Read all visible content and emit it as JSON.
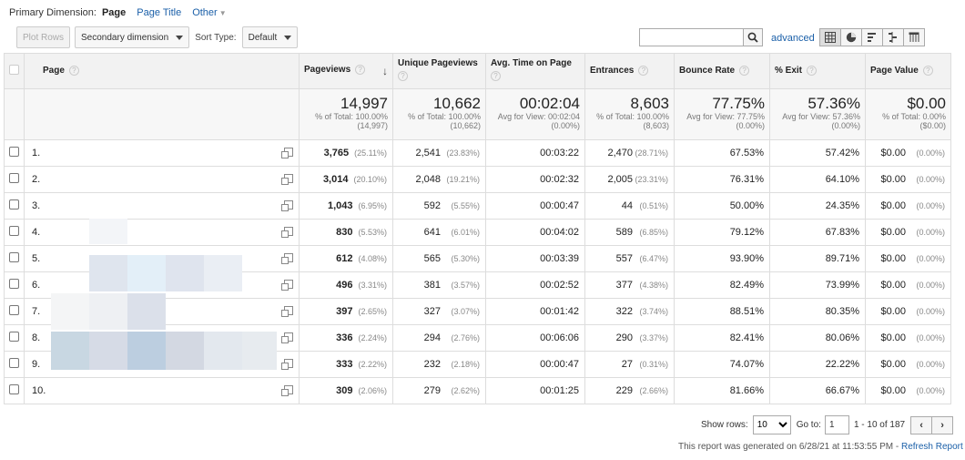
{
  "primary_dimension": {
    "label": "Primary Dimension:",
    "active": "Page",
    "options": [
      "Page Title",
      "Other"
    ]
  },
  "toolbar": {
    "plot_rows": "Plot Rows",
    "secondary_dimension": "Secondary dimension",
    "sort_type_label": "Sort Type:",
    "sort_type_value": "Default",
    "advanced": "advanced"
  },
  "columns": {
    "page": "Page",
    "pageviews": "Pageviews",
    "unique_pageviews": "Unique Pageviews",
    "avg_time": "Avg. Time on Page",
    "entrances": "Entrances",
    "bounce_rate": "Bounce Rate",
    "exit": "% Exit",
    "page_value": "Page Value"
  },
  "totals": {
    "pageviews": {
      "big": "14,997",
      "sub1": "% of Total: 100.00%",
      "sub2": "(14,997)"
    },
    "unique_pageviews": {
      "big": "10,662",
      "sub1": "% of Total: 100.00%",
      "sub2": "(10,662)"
    },
    "avg_time": {
      "big": "00:02:04",
      "sub1": "Avg for View: 00:02:04",
      "sub2": "(0.00%)"
    },
    "entrances": {
      "big": "8,603",
      "sub1": "% of Total: 100.00%",
      "sub2": "(8,603)"
    },
    "bounce_rate": {
      "big": "77.75%",
      "sub1": "Avg for View: 77.75%",
      "sub2": "(0.00%)"
    },
    "exit": {
      "big": "57.36%",
      "sub1": "Avg for View: 57.36%",
      "sub2": "(0.00%)"
    },
    "page_value": {
      "big": "$0.00",
      "sub1": "% of Total: 0.00%",
      "sub2": "($0.00)"
    }
  },
  "rows": [
    {
      "n": "1.",
      "pv": "3,765",
      "pvp": "(25.11%)",
      "upv": "2,541",
      "upvp": "(23.83%)",
      "time": "00:03:22",
      "ent": "2,470",
      "entp": "(28.71%)",
      "br": "67.53%",
      "ex": "57.42%",
      "val": "$0.00",
      "valp": "(0.00%)"
    },
    {
      "n": "2.",
      "pv": "3,014",
      "pvp": "(20.10%)",
      "upv": "2,048",
      "upvp": "(19.21%)",
      "time": "00:02:32",
      "ent": "2,005",
      "entp": "(23.31%)",
      "br": "76.31%",
      "ex": "64.10%",
      "val": "$0.00",
      "valp": "(0.00%)"
    },
    {
      "n": "3.",
      "pv": "1,043",
      "pvp": "(6.95%)",
      "upv": "592",
      "upvp": "(5.55%)",
      "time": "00:00:47",
      "ent": "44",
      "entp": "(0.51%)",
      "br": "50.00%",
      "ex": "24.35%",
      "val": "$0.00",
      "valp": "(0.00%)"
    },
    {
      "n": "4.",
      "pv": "830",
      "pvp": "(5.53%)",
      "upv": "641",
      "upvp": "(6.01%)",
      "time": "00:04:02",
      "ent": "589",
      "entp": "(6.85%)",
      "br": "79.12%",
      "ex": "67.83%",
      "val": "$0.00",
      "valp": "(0.00%)"
    },
    {
      "n": "5.",
      "pv": "612",
      "pvp": "(4.08%)",
      "upv": "565",
      "upvp": "(5.30%)",
      "time": "00:03:39",
      "ent": "557",
      "entp": "(6.47%)",
      "br": "93.90%",
      "ex": "89.71%",
      "val": "$0.00",
      "valp": "(0.00%)"
    },
    {
      "n": "6.",
      "pv": "496",
      "pvp": "(3.31%)",
      "upv": "381",
      "upvp": "(3.57%)",
      "time": "00:02:52",
      "ent": "377",
      "entp": "(4.38%)",
      "br": "82.49%",
      "ex": "73.99%",
      "val": "$0.00",
      "valp": "(0.00%)"
    },
    {
      "n": "7.",
      "pv": "397",
      "pvp": "(2.65%)",
      "upv": "327",
      "upvp": "(3.07%)",
      "time": "00:01:42",
      "ent": "322",
      "entp": "(3.74%)",
      "br": "88.51%",
      "ex": "80.35%",
      "val": "$0.00",
      "valp": "(0.00%)"
    },
    {
      "n": "8.",
      "pv": "336",
      "pvp": "(2.24%)",
      "upv": "294",
      "upvp": "(2.76%)",
      "time": "00:06:06",
      "ent": "290",
      "entp": "(3.37%)",
      "br": "82.41%",
      "ex": "80.06%",
      "val": "$0.00",
      "valp": "(0.00%)"
    },
    {
      "n": "9.",
      "pv": "333",
      "pvp": "(2.22%)",
      "upv": "232",
      "upvp": "(2.18%)",
      "time": "00:00:47",
      "ent": "27",
      "entp": "(0.31%)",
      "br": "74.07%",
      "ex": "22.22%",
      "val": "$0.00",
      "valp": "(0.00%)"
    },
    {
      "n": "10.",
      "pv": "309",
      "pvp": "(2.06%)",
      "upv": "279",
      "upvp": "(2.62%)",
      "time": "00:01:25",
      "ent": "229",
      "entp": "(2.66%)",
      "br": "81.66%",
      "ex": "66.67%",
      "val": "$0.00",
      "valp": "(0.00%)"
    }
  ],
  "pager": {
    "show_rows_label": "Show rows:",
    "show_rows_value": "10",
    "goto_label": "Go to:",
    "goto_value": "1",
    "range": "1 - 10 of 187"
  },
  "footer": {
    "generated": "This report was generated on 6/28/21 at 11:53:55 PM - ",
    "refresh": "Refresh Report"
  },
  "icons": {
    "search": "search-icon",
    "grid": "table-view-icon",
    "pie": "pie-view-icon",
    "bars": "performance-view-icon",
    "compare": "comparison-view-icon",
    "pivot": "pivot-view-icon",
    "open_page": "open-page-icon"
  },
  "colors": {
    "link": "#1a5fa8",
    "header_bg": "#f2f2f2",
    "border": "#dddddd"
  }
}
